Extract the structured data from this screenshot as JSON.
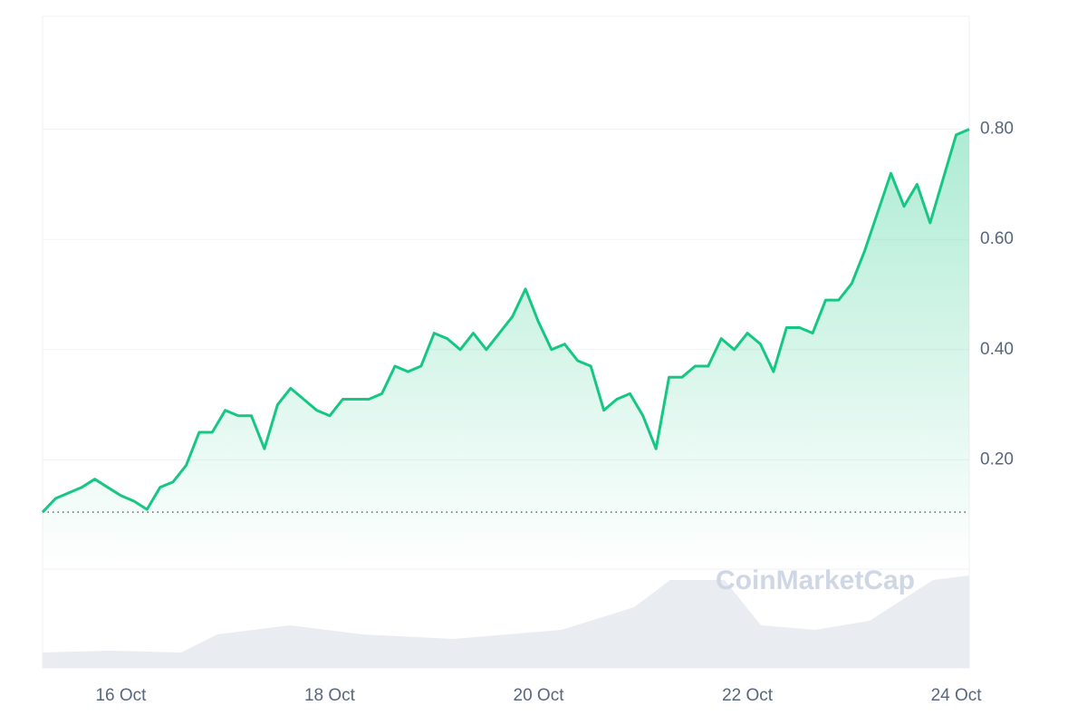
{
  "chart_data": {
    "type": "line",
    "watermark": "CoinMarketCap",
    "categories": [
      null,
      null,
      null,
      null,
      null,
      null,
      "16 Oct",
      null,
      null,
      null,
      null,
      null,
      null,
      null,
      null,
      null,
      null,
      null,
      null,
      null,
      null,
      null,
      "18 Oct",
      null,
      null,
      null,
      null,
      null,
      null,
      null,
      null,
      null,
      null,
      null,
      null,
      null,
      null,
      null,
      "20 Oct",
      null,
      null,
      null,
      null,
      null,
      null,
      null,
      null,
      null,
      null,
      null,
      null,
      null,
      null,
      null,
      "22 Oct",
      null,
      null,
      null,
      null,
      null,
      null,
      null,
      null,
      null,
      null,
      null,
      null,
      null,
      null,
      null,
      "24 Oct",
      null
    ],
    "values": [
      0.105,
      0.13,
      0.14,
      0.15,
      0.165,
      0.15,
      0.135,
      0.125,
      0.11,
      0.15,
      0.16,
      0.19,
      0.25,
      0.25,
      0.29,
      0.28,
      0.28,
      0.22,
      0.3,
      0.33,
      0.31,
      0.29,
      0.28,
      0.31,
      0.31,
      0.31,
      0.32,
      0.37,
      0.36,
      0.37,
      0.43,
      0.42,
      0.4,
      0.43,
      0.4,
      0.43,
      0.46,
      0.51,
      0.45,
      0.4,
      0.41,
      0.38,
      0.37,
      0.29,
      0.31,
      0.32,
      0.28,
      0.22,
      0.35,
      0.35,
      0.37,
      0.37,
      0.42,
      0.4,
      0.43,
      0.41,
      0.36,
      0.44,
      0.44,
      0.43,
      0.49,
      0.49,
      0.52,
      0.58,
      0.65,
      0.72,
      0.66,
      0.7,
      0.63,
      0.71,
      0.79,
      0.8
    ],
    "color": "#16c784",
    "open_line": 0.105,
    "ylim": [
      0,
      1.0
    ],
    "yticks": [
      {
        "value": 0.2,
        "label": "0.20"
      },
      {
        "value": 0.4,
        "label": "0.40"
      },
      {
        "value": 0.6,
        "label": "0.60"
      },
      {
        "value": 0.8,
        "label": "0.80"
      }
    ],
    "grid": true
  }
}
